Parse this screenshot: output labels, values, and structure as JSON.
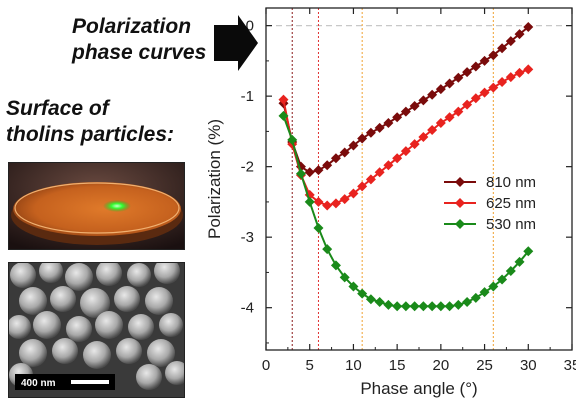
{
  "callouts": {
    "curves_line1": "Polarization",
    "curves_line2": "phase curves",
    "surface_line1": "Surface of",
    "surface_line2": "tholins particles:"
  },
  "sem_scalebar": "400 nm",
  "icons": [
    "right-arrow-icon"
  ],
  "chart_data": {
    "type": "line",
    "title": "",
    "xlabel": "Phase angle (°)",
    "ylabel": "Polarization (%)",
    "xlim": [
      0,
      35
    ],
    "ylim": [
      -4.6,
      0.25
    ],
    "xticks": [
      0,
      5,
      10,
      15,
      20,
      25,
      30,
      35
    ],
    "yticks": [
      0,
      -1,
      -2,
      -3,
      -4
    ],
    "ytick_labels": [
      "0",
      "-1",
      "-2",
      "-3",
      "-4"
    ],
    "reference_line_y": 0,
    "vlines": [
      {
        "x": 3,
        "color": "#8b1a1a"
      },
      {
        "x": 6,
        "color": "#e03030"
      },
      {
        "x": 11,
        "color": "#f0a030"
      },
      {
        "x": 26,
        "color": "#f0a030"
      }
    ],
    "legend": "center-right",
    "series": [
      {
        "name": "810 nm",
        "color": "#7a0b0b",
        "x": [
          2,
          3,
          4,
          5,
          6,
          7,
          8,
          9,
          10,
          11,
          12,
          13,
          14,
          15,
          16,
          17,
          18,
          19,
          20,
          21,
          22,
          23,
          24,
          25,
          26,
          27,
          28,
          29,
          30
        ],
        "y": [
          -1.1,
          -1.65,
          -2.0,
          -2.08,
          -2.05,
          -1.98,
          -1.88,
          -1.8,
          -1.7,
          -1.6,
          -1.52,
          -1.45,
          -1.38,
          -1.3,
          -1.22,
          -1.14,
          -1.06,
          -0.98,
          -0.9,
          -0.82,
          -0.74,
          -0.66,
          -0.58,
          -0.5,
          -0.42,
          -0.32,
          -0.22,
          -0.12,
          -0.02
        ]
      },
      {
        "name": "625 nm",
        "color": "#e8231f",
        "x": [
          2,
          3,
          4,
          5,
          6,
          7,
          8,
          9,
          10,
          11,
          12,
          13,
          14,
          15,
          16,
          17,
          18,
          19,
          20,
          21,
          22,
          23,
          24,
          25,
          26,
          27,
          28,
          29,
          30
        ],
        "y": [
          -1.05,
          -1.68,
          -2.12,
          -2.4,
          -2.5,
          -2.55,
          -2.52,
          -2.46,
          -2.38,
          -2.28,
          -2.18,
          -2.08,
          -1.98,
          -1.88,
          -1.78,
          -1.68,
          -1.58,
          -1.48,
          -1.38,
          -1.3,
          -1.22,
          -1.12,
          -1.03,
          -0.95,
          -0.88,
          -0.8,
          -0.73,
          -0.67,
          -0.62
        ]
      },
      {
        "name": "530 nm",
        "color": "#1a8a1a",
        "x": [
          2,
          3,
          4,
          5,
          6,
          7,
          8,
          9,
          10,
          11,
          12,
          13,
          14,
          15,
          16,
          17,
          18,
          19,
          20,
          21,
          22,
          23,
          24,
          25,
          26,
          27,
          28,
          29,
          30
        ],
        "y": [
          -1.28,
          -1.62,
          -2.1,
          -2.5,
          -2.87,
          -3.17,
          -3.4,
          -3.57,
          -3.7,
          -3.8,
          -3.88,
          -3.92,
          -3.96,
          -3.98,
          -3.98,
          -3.98,
          -3.98,
          -3.98,
          -3.98,
          -3.98,
          -3.96,
          -3.92,
          -3.86,
          -3.78,
          -3.7,
          -3.6,
          -3.48,
          -3.35,
          -3.2
        ]
      }
    ]
  }
}
